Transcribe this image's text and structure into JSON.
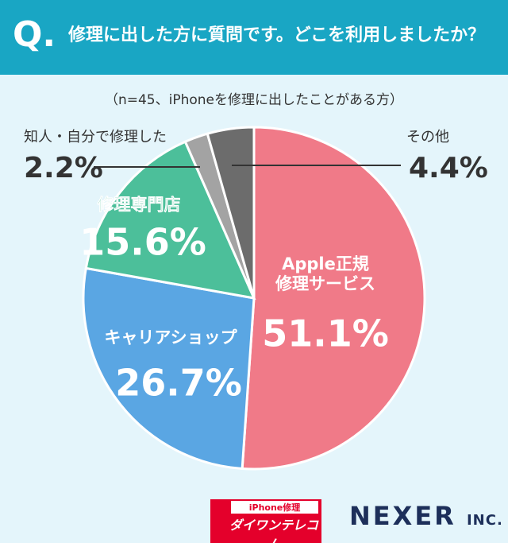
{
  "badge": "Q.",
  "footer": {
    "sponsor_top": "iPhone修理",
    "sponsor": "ダイワンテレコム",
    "company": "NEXER",
    "company_suffix": "INC."
  },
  "chart_data": {
    "type": "pie",
    "title": "修理に出した方に質問です。どこを利用しましたか？",
    "subtitle": "（n=45、iPhoneを修理に出したことがある方）",
    "categories": [
      "Apple正規\n修理サービス",
      "キャリアショップ",
      "修理専門店",
      "知人・自分で修理した",
      "その他"
    ],
    "values": [
      51.1,
      26.7,
      15.6,
      2.2,
      4.4
    ],
    "value_labels": [
      "51.1%",
      "26.7%",
      "15.6%",
      "2.2%",
      "4.4%"
    ],
    "colors": [
      "#f07a88",
      "#5aa6e3",
      "#4cbf9a",
      "#a3a3a3",
      "#6c6c6c"
    ]
  }
}
